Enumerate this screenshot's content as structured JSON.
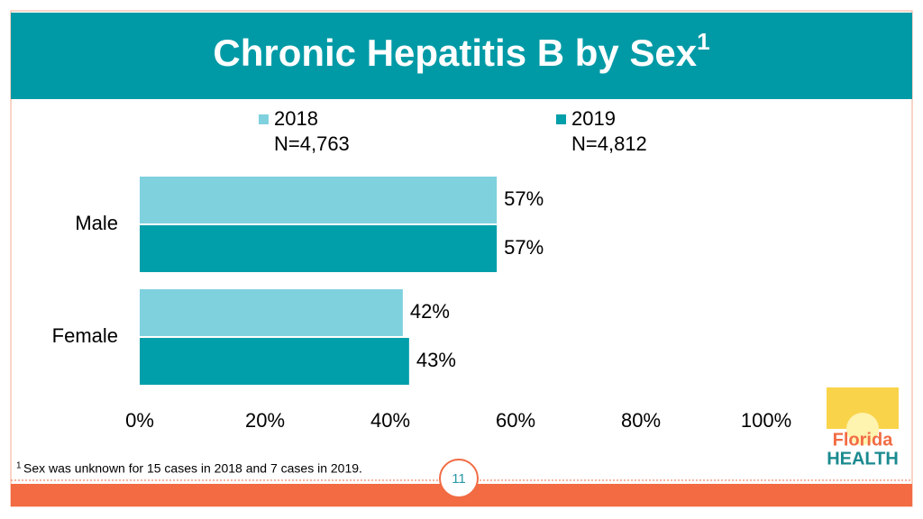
{
  "chart_data": {
    "type": "hbar",
    "title": "Chronic Hepatitis B by Sex",
    "title_footnote_marker": "1",
    "categories": [
      "Male",
      "Female"
    ],
    "series": [
      {
        "name": "2018",
        "sample_size": "N=4,763",
        "color": "#7fd1de",
        "values": [
          57,
          42
        ],
        "value_labels": [
          "57%",
          "42%"
        ]
      },
      {
        "name": "2019",
        "sample_size": "N=4,812",
        "color": "#009faa",
        "values": [
          57,
          43
        ],
        "value_labels": [
          "57%",
          "43%"
        ]
      }
    ],
    "xlim": [
      0,
      100
    ],
    "xticks": [
      {
        "value": 0,
        "label": "0%"
      },
      {
        "value": 20,
        "label": "20%"
      },
      {
        "value": 40,
        "label": "40%"
      },
      {
        "value": 60,
        "label": "60%"
      },
      {
        "value": 80,
        "label": "80%"
      },
      {
        "value": 100,
        "label": "100%"
      }
    ],
    "grid": false,
    "legend": "top"
  },
  "footnote": {
    "marker": "1",
    "text": "Sex was unknown for 15 cases in 2018 and 7 cases in 2019."
  },
  "page_number": "11",
  "logo": {
    "line1": "Florida",
    "line2": "HEALTH"
  }
}
